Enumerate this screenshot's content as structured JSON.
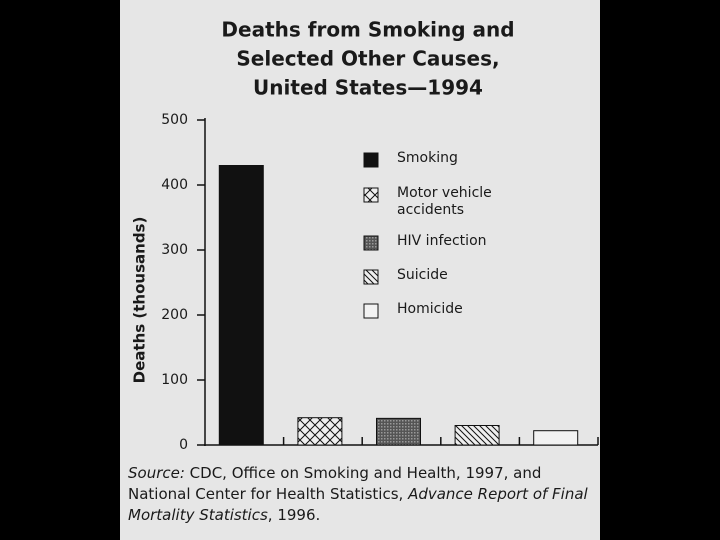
{
  "chart_data": {
    "type": "bar",
    "title_lines": [
      "Deaths from Smoking and",
      "Selected Other Causes,",
      "United States—1994"
    ],
    "y_label": "Deaths (thousands)",
    "categories": [
      "Smoking",
      "Motor vehicle accidents",
      "HIV infection",
      "Suicide",
      "Homicide"
    ],
    "values": [
      430,
      42,
      41,
      30,
      22
    ],
    "patterns": [
      "solid",
      "crosshatch",
      "dots",
      "diagonal",
      "none"
    ],
    "color": "#111111",
    "ylim": [
      0,
      500
    ],
    "yticks": [
      0,
      100,
      200,
      300,
      400,
      500
    ],
    "source": {
      "label": "Source:",
      "text": " CDC, Office on Smoking and Health, 1997, and National Center for Health Statistics, ",
      "report": "Advance Report of Final Mortality Statistics",
      "year": ", 1996."
    }
  }
}
